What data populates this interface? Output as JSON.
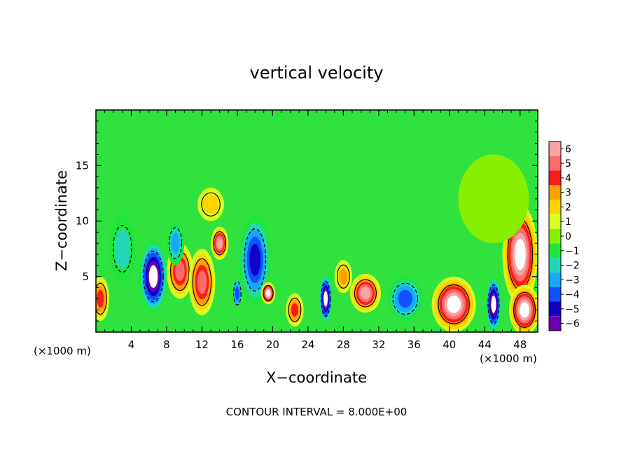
{
  "chart_data": {
    "type": "heatmap",
    "title": "vertical velocity",
    "xlabel": "X−coordinate",
    "ylabel": "Z−coordinate",
    "x_unit_left": "(×1000 m)",
    "x_unit_right": "(×1000 m)",
    "footer": "CONTOUR INTERVAL = 8.000E+00",
    "xlim": [
      0,
      50
    ],
    "ylim": [
      0,
      20
    ],
    "x_ticks": [
      "4",
      "8",
      "12",
      "16",
      "20",
      "24",
      "28",
      "32",
      "36",
      "40",
      "44",
      "48"
    ],
    "y_ticks": [
      "5",
      "10",
      "15"
    ],
    "colorbar": {
      "min": -6,
      "max": 6,
      "labels": [
        "6",
        "5",
        "4",
        "3",
        "2",
        "1",
        "0",
        "−1",
        "−2",
        "−3",
        "−4",
        "−5",
        "−6"
      ],
      "colors": [
        "#f5a3a3",
        "#ff6a6a",
        "#ff1a1a",
        "#ffa000",
        "#ffd400",
        "#d8ff20",
        "#86f000",
        "#1ee63c",
        "#24d6b8",
        "#14a8ff",
        "#1050ff",
        "#1000c8",
        "#6a00b0"
      ]
    },
    "features": [
      {
        "x": 6.5,
        "z": 5.0,
        "w": 3.2,
        "h": 6.5,
        "value": -7
      },
      {
        "x": 9.5,
        "z": 5.5,
        "w": 3.0,
        "h": 5.0,
        "value": 5
      },
      {
        "x": 12.0,
        "z": 4.5,
        "w": 3.0,
        "h": 6.0,
        "value": 5
      },
      {
        "x": 14.0,
        "z": 8.0,
        "w": 2.0,
        "h": 3.0,
        "value": 6
      },
      {
        "x": 13.0,
        "z": 11.5,
        "w": 3.0,
        "h": 3.0,
        "value": 2
      },
      {
        "x": 18.0,
        "z": 6.5,
        "w": 3.5,
        "h": 8.0,
        "value": -5
      },
      {
        "x": 19.5,
        "z": 3.5,
        "w": 1.6,
        "h": 2.0,
        "value": 7
      },
      {
        "x": 16.0,
        "z": 3.5,
        "w": 1.2,
        "h": 3.0,
        "value": -4
      },
      {
        "x": 9.0,
        "z": 8.0,
        "w": 2.0,
        "h": 4.0,
        "value": -3
      },
      {
        "x": 22.5,
        "z": 2.0,
        "w": 2.0,
        "h": 3.0,
        "value": 4
      },
      {
        "x": 26.0,
        "z": 3.0,
        "w": 1.5,
        "h": 4.5,
        "value": -7
      },
      {
        "x": 30.5,
        "z": 3.5,
        "w": 3.5,
        "h": 3.5,
        "value": 6
      },
      {
        "x": 35.0,
        "z": 3.0,
        "w": 4.0,
        "h": 4.0,
        "value": -4
      },
      {
        "x": 40.5,
        "z": 2.5,
        "w": 5.0,
        "h": 5.0,
        "value": 7
      },
      {
        "x": 45.0,
        "z": 2.5,
        "w": 1.8,
        "h": 5.0,
        "value": -7
      },
      {
        "x": 48.0,
        "z": 7.0,
        "w": 4.0,
        "h": 9.0,
        "value": 7
      },
      {
        "x": 48.5,
        "z": 2.0,
        "w": 3.5,
        "h": 4.5,
        "value": 7
      },
      {
        "x": 0.5,
        "z": 3.0,
        "w": 2.0,
        "h": 4.0,
        "value": 4
      },
      {
        "x": 3.0,
        "z": 7.5,
        "w": 3.0,
        "h": 6.0,
        "value": -2
      },
      {
        "x": 28.0,
        "z": 5.0,
        "w": 2.0,
        "h": 3.0,
        "value": 3
      },
      {
        "x": 45.0,
        "z": 12.0,
        "w": 8.0,
        "h": 8.0,
        "value": 0
      }
    ]
  }
}
